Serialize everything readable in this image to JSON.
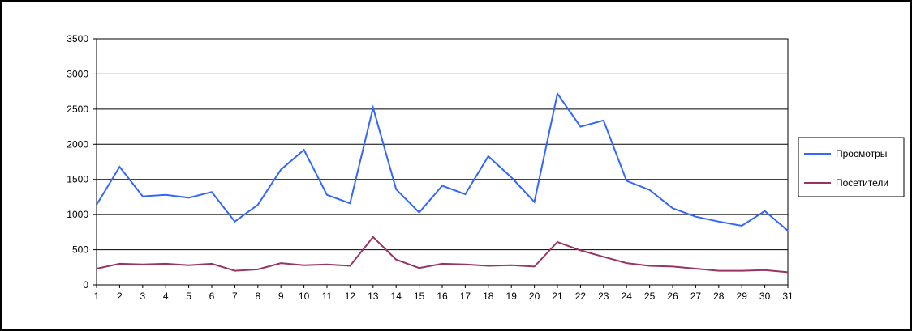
{
  "chart_data": {
    "type": "line",
    "title": "",
    "xlabel": "",
    "ylabel": "",
    "categories": [
      "1",
      "2",
      "3",
      "4",
      "5",
      "6",
      "7",
      "8",
      "9",
      "10",
      "11",
      "12",
      "13",
      "14",
      "15",
      "16",
      "17",
      "18",
      "19",
      "20",
      "21",
      "22",
      "23",
      "24",
      "25",
      "26",
      "27",
      "28",
      "29",
      "30",
      "31"
    ],
    "ylim": [
      0,
      3500
    ],
    "yticks": [
      0,
      500,
      1000,
      1500,
      2000,
      2500,
      3000,
      3500
    ],
    "grid": true,
    "legend_position": "right",
    "series": [
      {
        "name": "Просмотры",
        "color": "#3366ff",
        "values": [
          1140,
          1680,
          1260,
          1280,
          1240,
          1320,
          900,
          1140,
          1640,
          1920,
          1280,
          1160,
          2520,
          1360,
          1030,
          1410,
          1290,
          1830,
          1530,
          1180,
          2720,
          2250,
          2340,
          1480,
          1350,
          1090,
          970,
          900,
          840,
          1050,
          770
        ]
      },
      {
        "name": "Посетители",
        "color": "#993366",
        "values": [
          230,
          300,
          290,
          300,
          280,
          300,
          200,
          220,
          310,
          280,
          290,
          270,
          680,
          360,
          240,
          300,
          290,
          270,
          280,
          260,
          610,
          490,
          400,
          310,
          270,
          260,
          230,
          200,
          200,
          210,
          180
        ]
      }
    ]
  }
}
